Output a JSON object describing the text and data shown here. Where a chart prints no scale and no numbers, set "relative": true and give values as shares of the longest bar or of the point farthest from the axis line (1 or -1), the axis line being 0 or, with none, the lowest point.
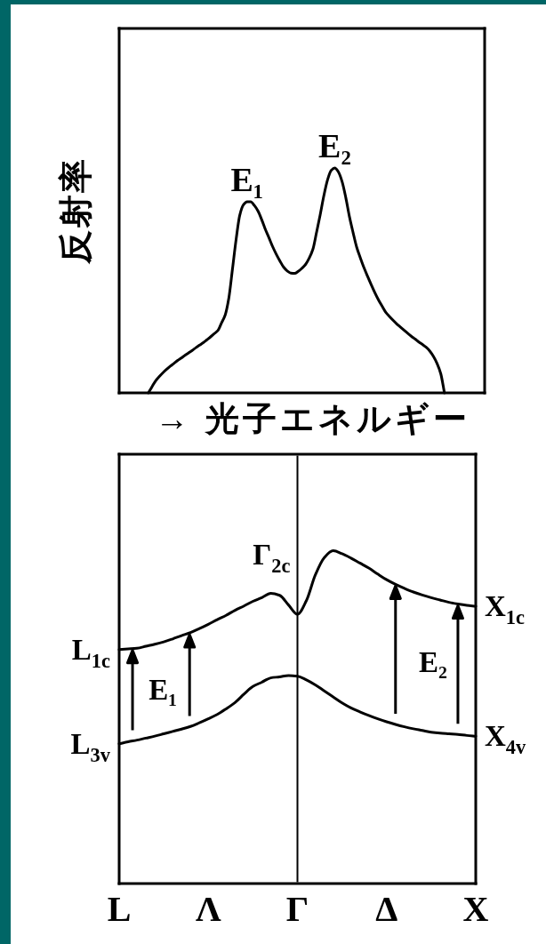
{
  "chart_data": [
    {
      "type": "line",
      "relative": true,
      "ylabel": "反射率",
      "xlabel": "→ 光子エネルギー",
      "categories": [
        null,
        null,
        null,
        null,
        null,
        null,
        null,
        null,
        null,
        null,
        null,
        null,
        null,
        null,
        null,
        null,
        null,
        null,
        null,
        null,
        null,
        null,
        null,
        null,
        null,
        null,
        null,
        null,
        null,
        null,
        null,
        null,
        null,
        null,
        null,
        null,
        null,
        null,
        null,
        null,
        null,
        null,
        null,
        null,
        null,
        null,
        null,
        null,
        null,
        null,
        null,
        null,
        null,
        null,
        null,
        null,
        null,
        null,
        null,
        null,
        null,
        null,
        null,
        null,
        null,
        null,
        null,
        null,
        null,
        null,
        null,
        null,
        null,
        null,
        null,
        null,
        null,
        null,
        null,
        null,
        null,
        null,
        null,
        null,
        null,
        null,
        null,
        null,
        null,
        null,
        null,
        null,
        null,
        null,
        null,
        null,
        null,
        null,
        null,
        null,
        null
      ],
      "series": [
        {
          "color": "#000000",
          "values": [
            null,
            null,
            null,
            null,
            null,
            null,
            null,
            null,
            0,
            0.028,
            0.054,
            0.073,
            0.09,
            0.105,
            0.119,
            0.131,
            0.144,
            0.155,
            0.167,
            0.178,
            0.189,
            0.201,
            0.212,
            0.223,
            0.236,
            0.249,
            0.263,
            0.277,
            0.311,
            0.346,
            0.421,
            0.55,
            0.682,
            0.79,
            0.836,
            0.85,
            0.85,
            0.833,
            0.808,
            0.77,
            0.727,
            0.689,
            0.65,
            0.616,
            0.586,
            0.559,
            0.542,
            0.532,
            0.531,
            0.54,
            0.554,
            0.571,
            0.599,
            0.638,
            0.713,
            0.791,
            0.876,
            0.946,
            0.989,
            1,
            0.982,
            0.939,
            0.869,
            0.784,
            0.713,
            0.647,
            0.6,
            0.556,
            0.517,
            0.48,
            0.444,
            0.412,
            0.384,
            0.357,
            0.339,
            0.322,
            0.306,
            0.292,
            0.278,
            0.264,
            0.251,
            0.239,
            0.226,
            0.215,
            0.203,
            0.186,
            0.162,
            0.13,
            0.085,
            0,
            null,
            null,
            null,
            null,
            null,
            null,
            null,
            null,
            null,
            null,
            null
          ]
        }
      ],
      "annotations": [
        {
          "text": "E₁",
          "y": 0.85
        },
        {
          "text": "E₂",
          "y": 1
        }
      ]
    },
    {
      "type": "line",
      "relative": true,
      "categories": [
        "L",
        null,
        null,
        null,
        null,
        null,
        null,
        null,
        null,
        null,
        "Λ",
        null,
        null,
        null,
        null,
        null,
        null,
        null,
        null,
        null,
        "Γ",
        null,
        null,
        null,
        null,
        null,
        null,
        null,
        null,
        null,
        "Δ",
        null,
        null,
        null,
        null,
        null,
        null,
        null,
        null,
        null,
        "X"
      ],
      "series": [
        {
          "color": "#000000",
          "values": [
            0.703,
            0.705,
            0.707,
            0.713,
            0.719,
            0.726,
            0.735,
            0.745,
            0.754,
            0.766,
            0.779,
            0.793,
            0.806,
            0.821,
            0.834,
            0.848,
            0.859,
            0.872,
            0.866,
            0.837,
            0.809,
            0.85,
            0.927,
            0.979,
            1,
            0.991,
            0.978,
            0.963,
            0.948,
            0.93,
            0.913,
            0.899,
            0.887,
            0.876,
            0.867,
            0.859,
            0.852,
            0.845,
            0.84,
            0.836,
            0.833
          ]
        },
        {
          "color": "#000000",
          "values": [
            0.42,
            0.426,
            0.431,
            0.437,
            0.443,
            0.45,
            0.457,
            0.464,
            0.472,
            0.483,
            0.495,
            0.508,
            0.525,
            0.544,
            0.569,
            0.592,
            0.605,
            0.618,
            0.621,
            0.625,
            0.623,
            0.612,
            0.597,
            0.579,
            0.561,
            0.543,
            0.528,
            0.516,
            0.505,
            0.495,
            0.486,
            0.478,
            0.471,
            0.465,
            0.46,
            0.455,
            0.452,
            0.45,
            0.448,
            0.445,
            0.443
          ]
        }
      ],
      "ref_lines": [
        {
          "axis": "x",
          "value": "Γ",
          "color": "#000000"
        }
      ],
      "annotations": [
        {
          "text": "L$_{1c}$",
          "x": "L",
          "y": 0.703
        },
        {
          "text": "L$_{3v}$",
          "x": "L",
          "y": 0.42
        },
        {
          "text": "Γ$_{2c}$",
          "x": "Γ",
          "y": 0.809
        },
        {
          "text": "X$_{1c}$",
          "x": "X",
          "y": 0.833
        },
        {
          "text": "X$_{4v}$",
          "x": "X",
          "y": 0.443
        },
        "E₁",
        "E₂"
      ]
    }
  ]
}
